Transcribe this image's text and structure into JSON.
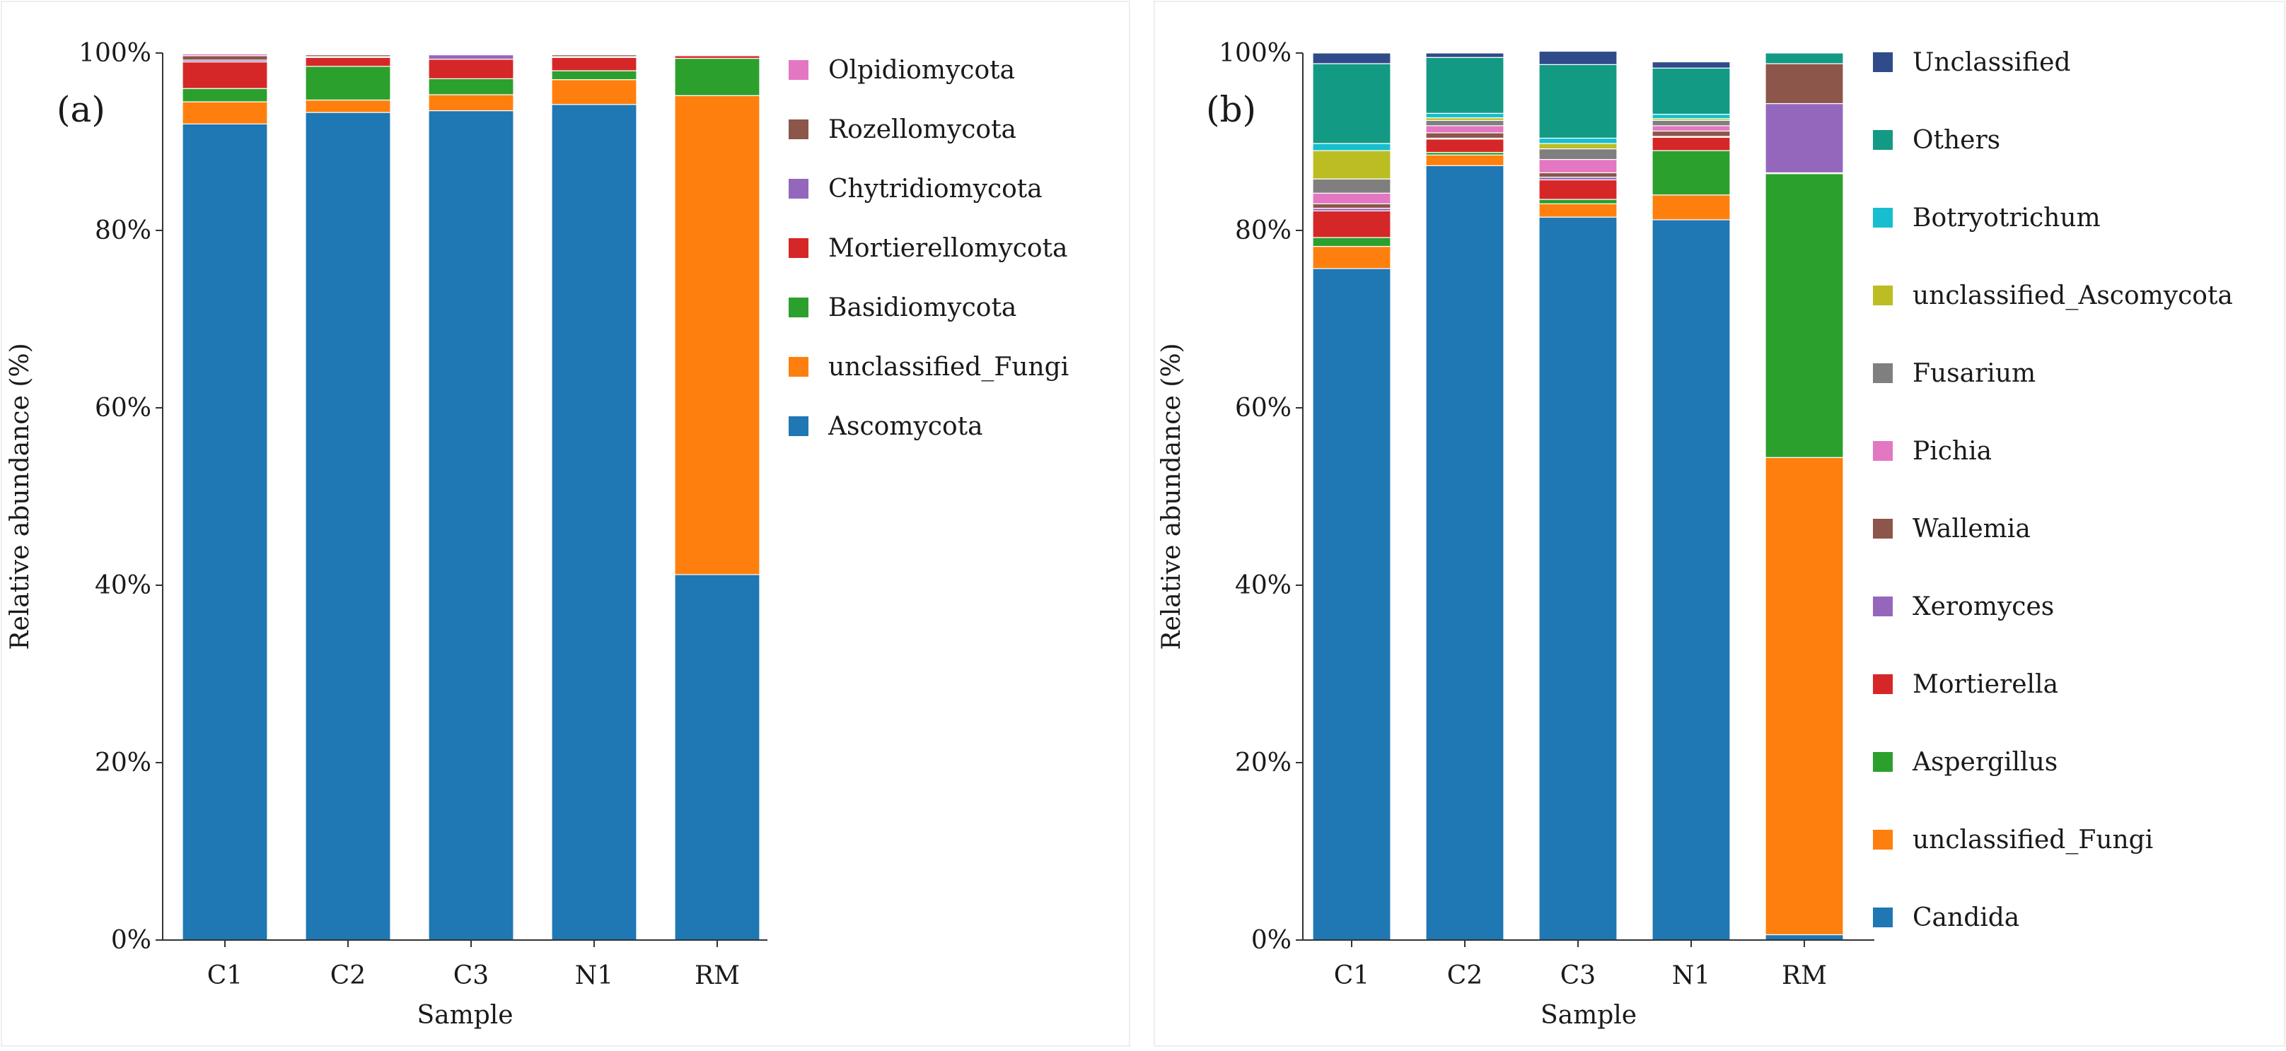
{
  "figure": {
    "panels": [
      "(a)",
      "(b)"
    ]
  },
  "chart_data": [
    {
      "type": "bar",
      "stacked": true,
      "panel_label": "(a)",
      "title": "",
      "xlabel": "Sample",
      "ylabel": "Relative abundance (%)",
      "ylim": [
        0,
        100
      ],
      "yticks": [
        "0%",
        "20%",
        "40%",
        "60%",
        "80%",
        "100%"
      ],
      "categories": [
        "C1",
        "C2",
        "C3",
        "N1",
        "RM"
      ],
      "legend_position": "right",
      "series": [
        {
          "name": "Ascomycota",
          "color": "#1f77b4",
          "values": [
            92.0,
            93.3,
            93.5,
            94.2,
            41.2
          ]
        },
        {
          "name": "unclassified_Fungi",
          "color": "#ff7f0e",
          "values": [
            2.5,
            1.4,
            1.8,
            2.8,
            54.0
          ]
        },
        {
          "name": "Basidiomycota",
          "color": "#2ca02c",
          "values": [
            1.5,
            3.8,
            1.8,
            1.0,
            4.2
          ]
        },
        {
          "name": "Mortierellomycota",
          "color": "#d62728",
          "values": [
            3.0,
            1.0,
            2.2,
            1.5,
            0.3
          ]
        },
        {
          "name": "Chytridiomycota",
          "color": "#9467bd",
          "values": [
            0.2,
            0.1,
            0.5,
            0.1,
            0.1
          ]
        },
        {
          "name": "Rozellomycota",
          "color": "#8c564b",
          "values": [
            0.5,
            0.2,
            0.1,
            0.2,
            0.1
          ]
        },
        {
          "name": "Olpidiomycota",
          "color": "#e377c2",
          "values": [
            0.2,
            0.1,
            0.1,
            0.1,
            0.0
          ]
        }
      ]
    },
    {
      "type": "bar",
      "stacked": true,
      "panel_label": "(b)",
      "title": "",
      "xlabel": "Sample",
      "ylabel": "Relative abundance (%)",
      "ylim": [
        0,
        100
      ],
      "yticks": [
        "0%",
        "20%",
        "40%",
        "60%",
        "80%",
        "100%"
      ],
      "categories": [
        "C1",
        "C2",
        "C3",
        "N1",
        "RM"
      ],
      "legend_position": "right",
      "series": [
        {
          "name": "Candida",
          "color": "#1f77b4",
          "values": [
            75.7,
            87.3,
            81.5,
            81.2,
            0.6
          ]
        },
        {
          "name": "unclassified_Fungi",
          "color": "#ff7f0e",
          "values": [
            2.5,
            1.2,
            1.5,
            2.8,
            53.8
          ]
        },
        {
          "name": "Aspergillus",
          "color": "#2ca02c",
          "values": [
            1.0,
            0.3,
            0.5,
            5.0,
            32.0
          ]
        },
        {
          "name": "Mortierella",
          "color": "#d62728",
          "values": [
            3.0,
            1.5,
            2.2,
            1.5,
            0.1
          ]
        },
        {
          "name": "Xeromyces",
          "color": "#9467bd",
          "values": [
            0.3,
            0.1,
            0.3,
            0.1,
            7.8
          ]
        },
        {
          "name": "Wallemia",
          "color": "#8c564b",
          "values": [
            0.5,
            0.6,
            0.5,
            0.6,
            4.5
          ]
        },
        {
          "name": "Pichia",
          "color": "#e377c2",
          "values": [
            1.2,
            0.8,
            1.5,
            0.6,
            0.0
          ]
        },
        {
          "name": "Fusarium",
          "color": "#7f7f7f",
          "values": [
            1.6,
            0.6,
            1.2,
            0.6,
            0.0
          ]
        },
        {
          "name": "unclassified_Ascomycota",
          "color": "#bcbd22",
          "values": [
            3.2,
            0.3,
            0.6,
            0.2,
            0.0
          ]
        },
        {
          "name": "Botryotrichum",
          "color": "#17becf",
          "values": [
            0.8,
            0.5,
            0.6,
            0.5,
            0.0
          ]
        },
        {
          "name": "Others",
          "color": "#129a84",
          "values": [
            9.0,
            6.3,
            8.3,
            5.2,
            1.2
          ]
        },
        {
          "name": "Unclassified",
          "color": "#2f4b8a",
          "values": [
            1.2,
            0.5,
            1.5,
            0.7,
            0.0
          ]
        }
      ]
    }
  ]
}
